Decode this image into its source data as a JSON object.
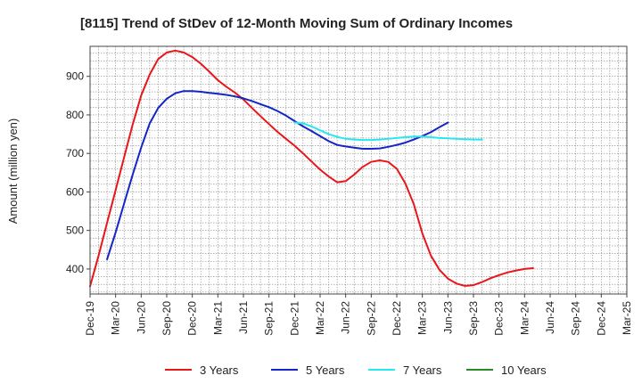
{
  "chart_data": {
    "type": "line",
    "title": "[8115]  Trend of StDev of 12-Month Moving Sum of Ordinary Incomes",
    "xlabel": "",
    "ylabel": "Amount (million yen)",
    "ylim": [
      335,
      978
    ],
    "yticks": [
      400,
      500,
      600,
      700,
      800,
      900
    ],
    "x_tick_labels": [
      "Dec-19",
      "Mar-20",
      "Jun-20",
      "Sep-20",
      "Dec-20",
      "Mar-21",
      "Jun-21",
      "Sep-21",
      "Dec-21",
      "Mar-22",
      "Jun-22",
      "Sep-22",
      "Dec-22",
      "Mar-23",
      "Jun-23",
      "Sep-23",
      "Dec-23",
      "Mar-24",
      "Jun-24",
      "Sep-24",
      "Dec-24",
      "Mar-25"
    ],
    "grid": true,
    "legend_position": "bottom",
    "series": [
      {
        "name": "3 Years",
        "color": "#e8161b",
        "start_index": 0,
        "values": [
          355,
          435,
          520,
          605,
          690,
          775,
          850,
          905,
          945,
          962,
          967,
          962,
          950,
          933,
          912,
          890,
          873,
          858,
          840,
          818,
          797,
          776,
          756,
          738,
          720,
          700,
          679,
          658,
          640,
          625,
          628,
          645,
          665,
          678,
          682,
          678,
          660,
          622,
          568,
          492,
          435,
          398,
          375,
          362,
          356,
          358,
          366,
          376,
          384,
          391,
          396,
          400,
          402
        ]
      },
      {
        "name": "5 Years",
        "color": "#1425c8",
        "start_index": 2,
        "values": [
          425,
          495,
          570,
          645,
          715,
          778,
          818,
          842,
          856,
          862,
          862,
          860,
          857,
          855,
          852,
          848,
          843,
          836,
          828,
          820,
          810,
          798,
          784,
          770,
          758,
          745,
          732,
          722,
          718,
          715,
          712,
          712,
          713,
          717,
          722,
          728,
          736,
          745,
          755,
          768,
          780
        ]
      },
      {
        "name": "7 Years",
        "color": "#26e8ee",
        "start_index": 24,
        "values": [
          780,
          778,
          770,
          760,
          750,
          743,
          738,
          736,
          735,
          735,
          736,
          738,
          740,
          742,
          744,
          744,
          742,
          740,
          739,
          738,
          737,
          736,
          736
        ]
      },
      {
        "name": "10 Years",
        "color": "#2a8a2a",
        "start_index": 0,
        "values": []
      }
    ]
  }
}
